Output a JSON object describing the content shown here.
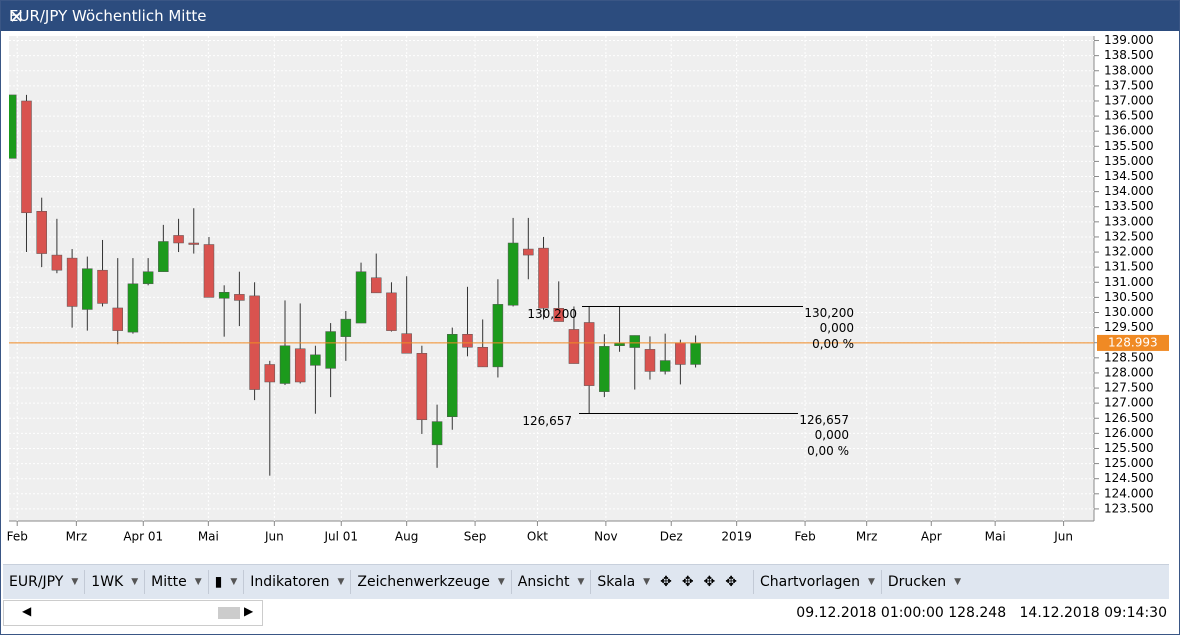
{
  "window": {
    "title": "EUR/JPY Wöchentlich Mitte"
  },
  "chart_data": {
    "type": "candlestick",
    "x": [
      0,
      1,
      2,
      3,
      4,
      5,
      6,
      7,
      8,
      9,
      10,
      11,
      12,
      13,
      14,
      15,
      16,
      17,
      18,
      19,
      20,
      21,
      22,
      23,
      24,
      25,
      26,
      27,
      28,
      29,
      30,
      31,
      32,
      33,
      34,
      35,
      36,
      37,
      38,
      39,
      40,
      41,
      42,
      43,
      44,
      45
    ],
    "series": [
      {
        "open": [
          135.1,
          137.0,
          133.35,
          131.9,
          131.8,
          130.1,
          131.4,
          130.15,
          129.35,
          130.95,
          131.35,
          132.55,
          132.3,
          132.25,
          130.47,
          130.6,
          130.55,
          128.28,
          127.65,
          128.8,
          128.25,
          128.15,
          129.2,
          129.65,
          131.15,
          130.65,
          129.3,
          128.65,
          125.62,
          126.55,
          129.28,
          128.85,
          128.2,
          130.24,
          132.1,
          132.13,
          130.14,
          129.44,
          129.67,
          127.38,
          128.9,
          128.84,
          128.78,
          128.05,
          129.0,
          128.28
        ],
        "high": [
          137.2,
          137.2,
          133.8,
          133.1,
          132.1,
          131.85,
          132.4,
          131.8,
          131.8,
          131.8,
          132.9,
          133.1,
          133.45,
          132.5,
          130.9,
          131.35,
          131.0,
          128.4,
          130.4,
          130.3,
          128.9,
          129.65,
          130.05,
          131.65,
          131.95,
          131.0,
          131.2,
          128.9,
          126.95,
          129.5,
          130.85,
          129.77,
          131.1,
          133.13,
          133.13,
          132.5,
          131.03,
          130.2,
          130.2,
          129.28,
          130.2,
          129.24,
          129.21,
          129.3,
          129.1,
          129.24
        ],
        "low": [
          135.1,
          132.0,
          131.5,
          131.3,
          129.5,
          129.4,
          130.2,
          128.95,
          129.3,
          130.9,
          131.35,
          132.0,
          131.95,
          130.5,
          129.2,
          129.55,
          127.1,
          124.6,
          127.6,
          127.65,
          126.65,
          127.2,
          128.4,
          129.65,
          130.65,
          129.37,
          128.65,
          125.98,
          124.86,
          126.12,
          128.55,
          128.2,
          127.85,
          130.2,
          131.1,
          129.77,
          129.7,
          128.31,
          126.66,
          127.2,
          128.7,
          127.45,
          127.78,
          127.95,
          127.62,
          128.18
        ],
        "close": [
          137.2,
          133.3,
          131.95,
          131.4,
          130.2,
          131.45,
          130.3,
          129.4,
          130.95,
          131.35,
          132.35,
          132.3,
          132.25,
          130.5,
          130.67,
          130.4,
          127.45,
          127.7,
          128.9,
          127.7,
          128.6,
          129.37,
          129.78,
          131.35,
          130.65,
          129.4,
          128.65,
          126.45,
          126.39,
          129.28,
          128.85,
          128.2,
          130.27,
          132.3,
          131.9,
          130.14,
          129.7,
          128.31,
          127.58,
          128.88,
          128.98,
          129.24,
          128.05,
          128.41,
          128.28,
          128.99
        ]
      }
    ],
    "up_color": "#1c9a1c",
    "down_color": "#d9534f",
    "xlim": [
      -0.15,
      71.2
    ],
    "xticks": [
      {
        "value": 0.39,
        "label": "Feb"
      },
      {
        "value": 4.28,
        "label": "Mrz"
      },
      {
        "value": 8.68,
        "label": "Apr 01"
      },
      {
        "value": 12.96,
        "label": "Mai"
      },
      {
        "value": 17.3,
        "label": "Jun"
      },
      {
        "value": 21.7,
        "label": "Jul 01"
      },
      {
        "value": 26.0,
        "label": "Aug"
      },
      {
        "value": 30.5,
        "label": "Sep"
      },
      {
        "value": 34.6,
        "label": "Okt"
      },
      {
        "value": 39.1,
        "label": "Nov"
      },
      {
        "value": 43.4,
        "label": "Dez"
      },
      {
        "value": 47.7,
        "label": "2019"
      },
      {
        "value": 52.2,
        "label": "Feb"
      },
      {
        "value": 56.25,
        "label": "Mrz"
      },
      {
        "value": 60.5,
        "label": "Apr"
      },
      {
        "value": 64.7,
        "label": "Mai"
      },
      {
        "value": 69.2,
        "label": "Jun"
      }
    ],
    "ylim": [
      123.1,
      139.15
    ],
    "yticks": [
      {
        "value": 123.5,
        "label": "123.500"
      },
      {
        "value": 124,
        "label": "124.000"
      },
      {
        "value": 124.5,
        "label": "124.500"
      },
      {
        "value": 125,
        "label": "125.000"
      },
      {
        "value": 125.5,
        "label": "125.500"
      },
      {
        "value": 126,
        "label": "126.000"
      },
      {
        "value": 126.5,
        "label": "126.500"
      },
      {
        "value": 127,
        "label": "127.000"
      },
      {
        "value": 127.5,
        "label": "127.500"
      },
      {
        "value": 128,
        "label": "128.000"
      },
      {
        "value": 128.5,
        "label": "128.500"
      },
      {
        "value": 129,
        "label": "129.000"
      },
      {
        "value": 129.5,
        "label": "129.500"
      },
      {
        "value": 130,
        "label": "130.000"
      },
      {
        "value": 130.5,
        "label": "130.500"
      },
      {
        "value": 131,
        "label": "131.000"
      },
      {
        "value": 131.5,
        "label": "131.500"
      },
      {
        "value": 132,
        "label": "132.000"
      },
      {
        "value": 132.5,
        "label": "132.500"
      },
      {
        "value": 133,
        "label": "133.000"
      },
      {
        "value": 133.5,
        "label": "133.500"
      },
      {
        "value": 134,
        "label": "134.000"
      },
      {
        "value": 134.5,
        "label": "134.500"
      },
      {
        "value": 135,
        "label": "135.000"
      },
      {
        "value": 135.5,
        "label": "135.500"
      },
      {
        "value": 136,
        "label": "136.000"
      },
      {
        "value": 136.5,
        "label": "136.500"
      },
      {
        "value": 137,
        "label": "137.000"
      },
      {
        "value": 137.5,
        "label": "137.500"
      },
      {
        "value": 138,
        "label": "138.000"
      },
      {
        "value": 138.5,
        "label": "138.500"
      },
      {
        "value": 139,
        "label": "139.000"
      }
    ],
    "grid": true,
    "last_price": {
      "value": 128.993,
      "label": "128.993",
      "color": "#f08a24"
    },
    "annotations": [
      {
        "value": 130.2,
        "label": "130,200",
        "change": "0,000",
        "change_pct": "0,00 %"
      },
      {
        "value": 126.657,
        "label": "126,657",
        "change": "0,000",
        "change_pct": "0,00 %"
      }
    ]
  },
  "toolbar": {
    "symbol": "EUR/JPY",
    "period": "1WK",
    "price": "Mitte",
    "indicators": "Indikatoren",
    "drawing": "Zeichenwerkzeuge",
    "view": "Ansicht",
    "scale": "Skala",
    "templates": "Chartvorlagen",
    "print": "Drucken"
  },
  "status": {
    "cursor": "09.12.2018 01:00:00 128.248",
    "time": "14.12.2018 09:14:30"
  }
}
